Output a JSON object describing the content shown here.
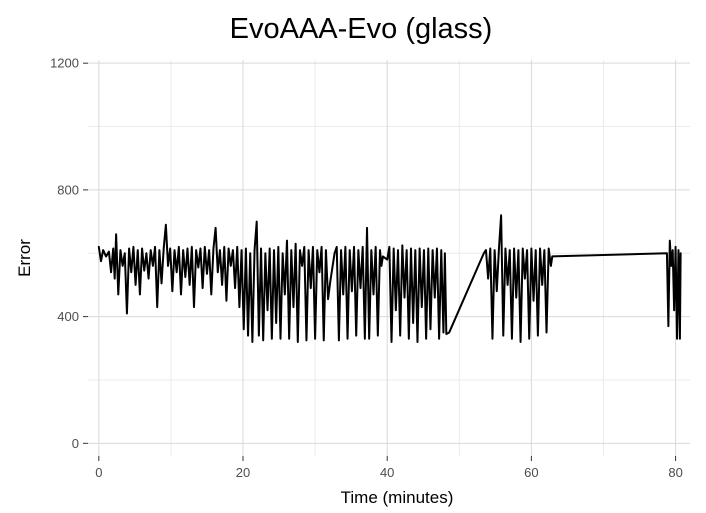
{
  "chart_data": {
    "type": "line",
    "title": "EvoAAA-Evo (glass)",
    "xlabel": "Time (minutes)",
    "ylabel": "Error",
    "xlim": [
      -1.5,
      82
    ],
    "ylim": [
      -40,
      1210
    ],
    "x_ticks": [
      0,
      20,
      40,
      60,
      80
    ],
    "y_ticks": [
      0,
      400,
      800,
      1200
    ],
    "grid": true,
    "legend": "none",
    "colors": {
      "line": "#000000",
      "grid_major": "#d9d9d9",
      "grid_minor": "#ebebeb",
      "axis_ticks": "#333333",
      "tick_labels": "#4d4d4d"
    },
    "series": [
      {
        "points": [
          [
            0.0,
            620
          ],
          [
            0.3,
            575
          ],
          [
            0.6,
            610
          ],
          [
            1.0,
            590
          ],
          [
            1.4,
            605
          ],
          [
            1.7,
            540
          ],
          [
            2.0,
            615
          ],
          [
            2.2,
            520
          ],
          [
            2.4,
            660
          ],
          [
            2.7,
            470
          ],
          [
            3.0,
            610
          ],
          [
            3.3,
            560
          ],
          [
            3.6,
            600
          ],
          [
            3.9,
            410
          ],
          [
            4.2,
            615
          ],
          [
            4.5,
            540
          ],
          [
            4.8,
            620
          ],
          [
            5.1,
            500
          ],
          [
            5.4,
            610
          ],
          [
            5.7,
            470
          ],
          [
            6.0,
            615
          ],
          [
            6.3,
            545
          ],
          [
            6.6,
            600
          ],
          [
            6.9,
            520
          ],
          [
            7.2,
            610
          ],
          [
            7.5,
            560
          ],
          [
            7.8,
            620
          ],
          [
            8.1,
            430
          ],
          [
            8.4,
            610
          ],
          [
            8.7,
            505
          ],
          [
            9.0,
            615
          ],
          [
            9.3,
            690
          ],
          [
            9.6,
            560
          ],
          [
            9.9,
            615
          ],
          [
            10.2,
            480
          ],
          [
            10.5,
            610
          ],
          [
            10.8,
            540
          ],
          [
            11.1,
            620
          ],
          [
            11.4,
            470
          ],
          [
            11.7,
            610
          ],
          [
            12.0,
            525
          ],
          [
            12.3,
            615
          ],
          [
            12.6,
            500
          ],
          [
            12.9,
            620
          ],
          [
            13.2,
            430
          ],
          [
            13.5,
            610
          ],
          [
            13.8,
            555
          ],
          [
            14.1,
            615
          ],
          [
            14.4,
            490
          ],
          [
            14.7,
            620
          ],
          [
            15.0,
            535
          ],
          [
            15.3,
            610
          ],
          [
            15.6,
            470
          ],
          [
            15.9,
            615
          ],
          [
            16.2,
            680
          ],
          [
            16.5,
            540
          ],
          [
            16.8,
            610
          ],
          [
            17.1,
            500
          ],
          [
            17.4,
            620
          ],
          [
            17.7,
            450
          ],
          [
            18.0,
            615
          ],
          [
            18.3,
            560
          ],
          [
            18.6,
            610
          ],
          [
            18.9,
            490
          ],
          [
            19.2,
            620
          ],
          [
            19.5,
            430
          ],
          [
            19.8,
            610
          ],
          [
            20.1,
            360
          ],
          [
            20.4,
            615
          ],
          [
            20.7,
            340
          ],
          [
            21.0,
            600
          ],
          [
            21.3,
            320
          ],
          [
            21.6,
            610
          ],
          [
            21.9,
            700
          ],
          [
            22.2,
            340
          ],
          [
            22.5,
            615
          ],
          [
            22.8,
            325
          ],
          [
            23.1,
            600
          ],
          [
            23.4,
            420
          ],
          [
            23.7,
            615
          ],
          [
            24.0,
            330
          ],
          [
            24.3,
            610
          ],
          [
            24.6,
            380
          ],
          [
            24.9,
            620
          ],
          [
            25.2,
            330
          ],
          [
            25.5,
            600
          ],
          [
            25.8,
            470
          ],
          [
            26.1,
            640
          ],
          [
            26.4,
            330
          ],
          [
            26.7,
            610
          ],
          [
            27.0,
            430
          ],
          [
            27.3,
            630
          ],
          [
            27.6,
            320
          ],
          [
            27.9,
            610
          ],
          [
            28.2,
            560
          ],
          [
            28.5,
            620
          ],
          [
            28.8,
            325
          ],
          [
            29.1,
            610
          ],
          [
            29.4,
            490
          ],
          [
            29.7,
            620
          ],
          [
            30.0,
            330
          ],
          [
            30.3,
            610
          ],
          [
            30.6,
            540
          ],
          [
            30.9,
            620
          ],
          [
            31.2,
            325
          ],
          [
            31.5,
            610
          ],
          [
            31.8,
            455
          ],
          [
            32.1,
            510
          ],
          [
            32.4,
            555
          ],
          [
            32.7,
            600
          ],
          [
            33.0,
            620
          ],
          [
            33.3,
            325
          ],
          [
            33.6,
            610
          ],
          [
            33.9,
            470
          ],
          [
            34.2,
            620
          ],
          [
            34.5,
            330
          ],
          [
            34.8,
            610
          ],
          [
            35.1,
            480
          ],
          [
            35.4,
            620
          ],
          [
            35.7,
            340
          ],
          [
            36.0,
            610
          ],
          [
            36.3,
            490
          ],
          [
            36.6,
            620
          ],
          [
            36.9,
            330
          ],
          [
            37.2,
            680
          ],
          [
            37.5,
            330
          ],
          [
            37.8,
            610
          ],
          [
            38.1,
            470
          ],
          [
            38.4,
            620
          ],
          [
            38.7,
            340
          ],
          [
            39.0,
            610
          ],
          [
            39.2,
            560
          ],
          [
            39.4,
            590
          ],
          [
            40.0,
            580
          ],
          [
            40.3,
            620
          ],
          [
            40.6,
            320
          ],
          [
            40.9,
            615
          ],
          [
            41.2,
            420
          ],
          [
            41.5,
            610
          ],
          [
            41.8,
            340
          ],
          [
            42.1,
            625
          ],
          [
            42.4,
            460
          ],
          [
            42.7,
            610
          ],
          [
            43.0,
            330
          ],
          [
            43.3,
            615
          ],
          [
            43.6,
            380
          ],
          [
            43.9,
            610
          ],
          [
            44.2,
            320
          ],
          [
            44.5,
            615
          ],
          [
            44.8,
            430
          ],
          [
            45.1,
            610
          ],
          [
            45.4,
            330
          ],
          [
            45.7,
            615
          ],
          [
            46.0,
            360
          ],
          [
            46.3,
            610
          ],
          [
            46.6,
            460
          ],
          [
            46.9,
            615
          ],
          [
            47.2,
            330
          ],
          [
            47.5,
            610
          ],
          [
            47.8,
            350
          ],
          [
            48.0,
            600
          ],
          [
            48.2,
            345
          ],
          [
            48.6,
            350
          ],
          [
            53.4,
            600
          ],
          [
            53.7,
            610
          ],
          [
            54.0,
            520
          ],
          [
            54.3,
            615
          ],
          [
            54.6,
            330
          ],
          [
            54.9,
            610
          ],
          [
            55.2,
            480
          ],
          [
            55.5,
            615
          ],
          [
            55.8,
            720
          ],
          [
            56.1,
            340
          ],
          [
            56.4,
            615
          ],
          [
            56.7,
            500
          ],
          [
            57.0,
            610
          ],
          [
            57.3,
            330
          ],
          [
            57.6,
            615
          ],
          [
            57.9,
            460
          ],
          [
            58.2,
            610
          ],
          [
            58.5,
            320
          ],
          [
            58.8,
            615
          ],
          [
            59.1,
            520
          ],
          [
            59.4,
            610
          ],
          [
            59.7,
            330
          ],
          [
            60.0,
            615
          ],
          [
            60.3,
            450
          ],
          [
            60.6,
            610
          ],
          [
            60.9,
            340
          ],
          [
            61.2,
            615
          ],
          [
            61.5,
            500
          ],
          [
            61.8,
            610
          ],
          [
            62.1,
            350
          ],
          [
            62.4,
            615
          ],
          [
            62.7,
            560
          ],
          [
            62.9,
            590
          ],
          [
            78.8,
            600
          ],
          [
            79.0,
            370
          ],
          [
            79.2,
            640
          ],
          [
            79.4,
            560
          ],
          [
            79.6,
            610
          ],
          [
            79.8,
            420
          ],
          [
            80.0,
            620
          ],
          [
            80.2,
            330
          ],
          [
            80.4,
            610
          ],
          [
            80.6,
            330
          ],
          [
            80.7,
            600
          ]
        ]
      }
    ]
  }
}
